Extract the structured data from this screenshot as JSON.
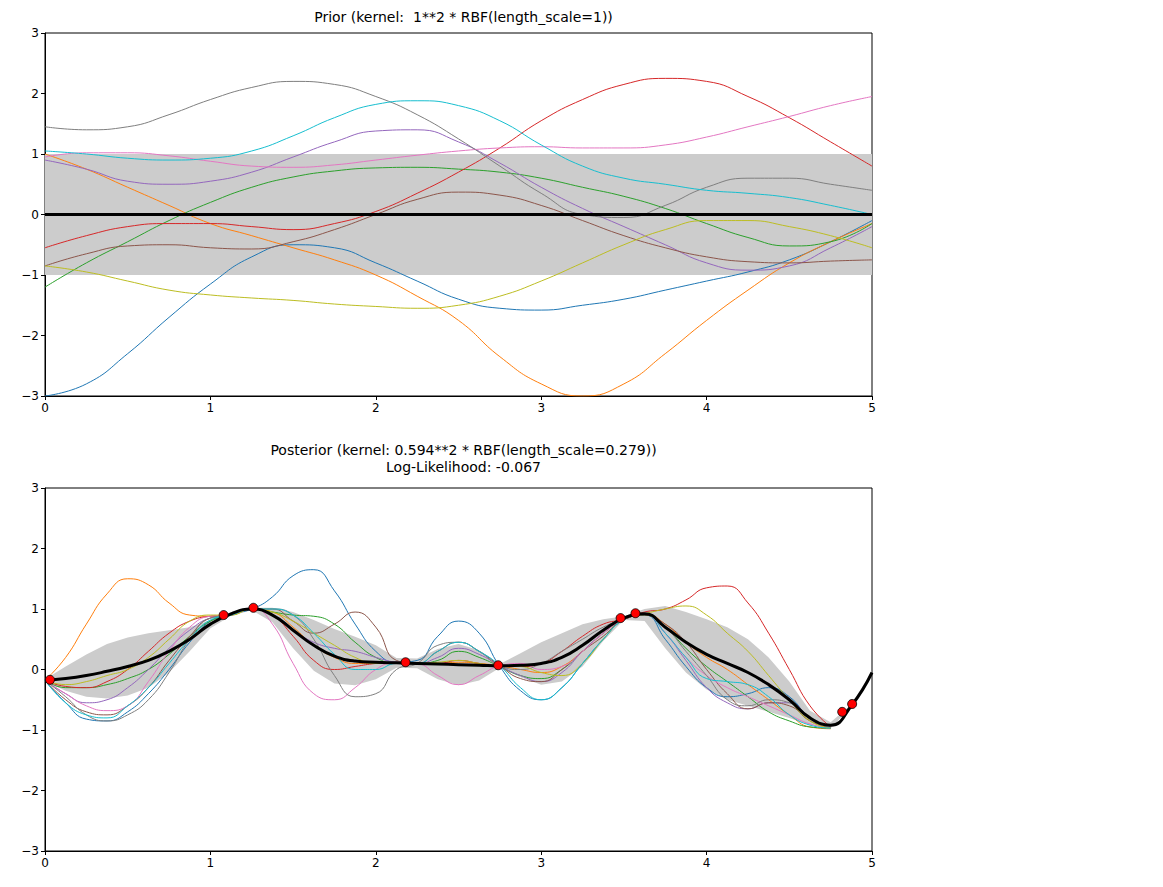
{
  "chart_data": [
    {
      "type": "line",
      "title": "Prior (kernel:  1**2 * RBF(length_scale=1))",
      "x": [
        0,
        0.25,
        0.5,
        0.75,
        1,
        1.25,
        1.5,
        1.75,
        2,
        2.25,
        2.5,
        2.75,
        3,
        3.25,
        3.5,
        3.75,
        4,
        4.25,
        4.5,
        4.75,
        5
      ],
      "series": [
        {
          "color": "#1f77b4",
          "values": [
            -3.0,
            -2.8,
            -2.3,
            -1.7,
            -1.15,
            -0.7,
            -0.5,
            -0.55,
            -0.8,
            -1.1,
            -1.4,
            -1.55,
            -1.58,
            -1.5,
            -1.4,
            -1.25,
            -1.1,
            -0.95,
            -0.75,
            -0.45,
            -0.1
          ]
        },
        {
          "color": "#ff7f0e",
          "values": [
            1.0,
            0.75,
            0.45,
            0.15,
            -0.15,
            -0.35,
            -0.55,
            -0.75,
            -1.0,
            -1.35,
            -1.75,
            -2.35,
            -2.8,
            -3.0,
            -2.8,
            -2.3,
            -1.75,
            -1.25,
            -0.8,
            -0.45,
            -0.15
          ]
        },
        {
          "color": "#2ca02c",
          "values": [
            -1.2,
            -0.8,
            -0.45,
            -0.1,
            0.2,
            0.45,
            0.62,
            0.72,
            0.77,
            0.78,
            0.75,
            0.7,
            0.6,
            0.45,
            0.3,
            0.1,
            -0.15,
            -0.38,
            -0.52,
            -0.45,
            -0.15
          ]
        },
        {
          "color": "#d62728",
          "values": [
            -0.55,
            -0.35,
            -0.2,
            -0.15,
            -0.15,
            -0.2,
            -0.25,
            -0.15,
            0.05,
            0.35,
            0.7,
            1.1,
            1.55,
            1.9,
            2.15,
            2.25,
            2.2,
            1.95,
            1.6,
            1.2,
            0.8
          ]
        },
        {
          "color": "#9467bd",
          "values": [
            0.9,
            0.75,
            0.55,
            0.5,
            0.55,
            0.7,
            0.95,
            1.2,
            1.38,
            1.4,
            1.2,
            0.85,
            0.45,
            0.1,
            -0.2,
            -0.5,
            -0.8,
            -0.92,
            -0.85,
            -0.55,
            -0.2
          ]
        },
        {
          "color": "#8c564b",
          "values": [
            -0.85,
            -0.65,
            -0.52,
            -0.5,
            -0.55,
            -0.57,
            -0.45,
            -0.25,
            0.0,
            0.25,
            0.37,
            0.32,
            0.15,
            -0.1,
            -0.35,
            -0.55,
            -0.7,
            -0.78,
            -0.8,
            -0.77,
            -0.75
          ]
        },
        {
          "color": "#e377c2",
          "values": [
            0.95,
            1.02,
            1.02,
            0.97,
            0.88,
            0.8,
            0.78,
            0.82,
            0.9,
            0.98,
            1.05,
            1.1,
            1.12,
            1.1,
            1.1,
            1.15,
            1.28,
            1.45,
            1.62,
            1.8,
            1.95
          ]
        },
        {
          "color": "#7f7f7f",
          "values": [
            1.45,
            1.4,
            1.45,
            1.65,
            1.9,
            2.1,
            2.2,
            2.15,
            1.95,
            1.65,
            1.25,
            0.8,
            0.35,
            0.0,
            -0.05,
            0.15,
            0.45,
            0.6,
            0.6,
            0.5,
            0.4
          ]
        },
        {
          "color": "#bcbd22",
          "values": [
            -0.85,
            -0.95,
            -1.1,
            -1.25,
            -1.33,
            -1.38,
            -1.42,
            -1.48,
            -1.52,
            -1.55,
            -1.5,
            -1.35,
            -1.1,
            -0.8,
            -0.5,
            -0.25,
            -0.1,
            -0.1,
            -0.2,
            -0.35,
            -0.55
          ]
        },
        {
          "color": "#17becf",
          "values": [
            1.05,
            1.0,
            0.93,
            0.9,
            0.93,
            1.05,
            1.3,
            1.6,
            1.82,
            1.88,
            1.8,
            1.55,
            1.15,
            0.8,
            0.6,
            0.5,
            0.4,
            0.35,
            0.28,
            0.15,
            0.0
          ]
        }
      ],
      "mean": {
        "color": "#000000",
        "values": [
          0,
          0,
          0,
          0,
          0,
          0,
          0,
          0,
          0,
          0,
          0,
          0,
          0,
          0,
          0,
          0,
          0,
          0,
          0,
          0,
          0
        ]
      },
      "band": {
        "color": "#cccccc",
        "lower": [
          -1,
          -1,
          -1,
          -1,
          -1,
          -1,
          -1,
          -1,
          -1,
          -1,
          -1,
          -1,
          -1,
          -1,
          -1,
          -1,
          -1,
          -1,
          -1,
          -1,
          -1
        ],
        "upper": [
          1,
          1,
          1,
          1,
          1,
          1,
          1,
          1,
          1,
          1,
          1,
          1,
          1,
          1,
          1,
          1,
          1,
          1,
          1,
          1,
          1
        ]
      },
      "xlim": [
        0,
        5
      ],
      "ylim": [
        -3,
        3
      ],
      "xticks": [
        0,
        1,
        2,
        3,
        4,
        5
      ],
      "yticks": [
        -3,
        -2,
        -1,
        0,
        1,
        2,
        3
      ],
      "grid": false
    },
    {
      "type": "line",
      "title": "Posterior (kernel: 0.594**2 * RBF(length_scale=0.279))",
      "subtitle": "Log-Likelihood: -0.067",
      "x": [
        0,
        0.125,
        0.25,
        0.375,
        0.5,
        0.625,
        0.75,
        0.875,
        1,
        1.125,
        1.25,
        1.375,
        1.5,
        1.625,
        1.75,
        1.875,
        2,
        2.125,
        2.25,
        2.375,
        2.5,
        2.625,
        2.75,
        2.875,
        3,
        3.125,
        3.25,
        3.375,
        3.5,
        3.625,
        3.75,
        3.875,
        4,
        4.125,
        4.25,
        4.375,
        4.5,
        4.625,
        4.75,
        4.875,
        5
      ],
      "series": [
        {
          "color": "#1f77b4",
          "values": [
            -0.18,
            -0.55,
            -0.82,
            -0.85,
            -0.7,
            -0.4,
            0.0,
            0.45,
            0.8,
            0.92,
            1.0,
            1.2,
            1.55,
            1.65,
            1.3,
            0.75,
            0.3,
            0.12,
            0.15,
            0.55,
            0.8,
            0.6,
            0.05,
            -0.35,
            -0.5,
            -0.3,
            0.1,
            0.5,
            0.82,
            0.9,
            0.5,
            0.05,
            -0.3,
            -0.45,
            -0.4,
            -0.3,
            -0.45,
            -0.8,
            -0.95,
            null,
            null
          ]
        },
        {
          "color": "#ff7f0e",
          "values": [
            -0.18,
            0.2,
            0.75,
            1.25,
            1.5,
            1.4,
            1.1,
            0.9,
            0.88,
            0.9,
            1.0,
            0.95,
            0.7,
            0.4,
            0.2,
            0.1,
            0.1,
            0.1,
            0.1,
            0.1,
            0.12,
            0.1,
            0.06,
            0.0,
            -0.05,
            0.05,
            0.3,
            0.6,
            0.83,
            0.92,
            0.75,
            0.45,
            0.2,
            0.0,
            -0.25,
            -0.5,
            -0.75,
            -0.95,
            -0.98,
            null,
            null
          ]
        },
        {
          "color": "#2ca02c",
          "values": [
            -0.18,
            -0.3,
            -0.3,
            -0.25,
            -0.15,
            0.0,
            0.25,
            0.55,
            0.8,
            0.9,
            1.0,
            0.95,
            0.9,
            0.88,
            0.75,
            0.45,
            0.2,
            0.1,
            0.1,
            0.15,
            0.3,
            0.2,
            0.05,
            -0.1,
            -0.15,
            0.0,
            0.3,
            0.6,
            0.83,
            0.9,
            0.7,
            0.35,
            0.05,
            -0.2,
            -0.45,
            -0.7,
            -0.85,
            -0.95,
            -0.97,
            null,
            null
          ]
        },
        {
          "color": "#d62728",
          "values": [
            -0.18,
            -0.28,
            -0.3,
            -0.2,
            0.0,
            0.3,
            0.6,
            0.8,
            0.88,
            0.9,
            1.0,
            0.9,
            0.55,
            0.15,
            0.0,
            0.05,
            0.1,
            0.12,
            0.1,
            0.1,
            0.15,
            0.1,
            0.06,
            0.05,
            0.1,
            0.3,
            0.55,
            0.75,
            0.83,
            0.95,
            1.0,
            1.15,
            1.35,
            1.38,
            1.1,
            0.6,
            0.0,
            -0.6,
            -0.95,
            null,
            null
          ]
        },
        {
          "color": "#9467bd",
          "values": [
            -0.18,
            -0.4,
            -0.55,
            -0.5,
            -0.3,
            0.0,
            0.35,
            0.65,
            0.85,
            0.9,
            1.0,
            0.9,
            0.65,
            0.45,
            0.35,
            0.3,
            0.2,
            0.12,
            0.1,
            0.2,
            0.35,
            0.25,
            0.06,
            -0.1,
            -0.2,
            -0.05,
            0.3,
            0.6,
            0.83,
            0.92,
            0.6,
            0.15,
            -0.3,
            -0.55,
            -0.65,
            -0.55,
            -0.55,
            -0.8,
            -0.97,
            null,
            null
          ]
        },
        {
          "color": "#8c564b",
          "values": [
            -0.18,
            -0.5,
            -0.7,
            -0.75,
            -0.6,
            -0.3,
            0.15,
            0.55,
            0.85,
            0.9,
            1.0,
            1.0,
            0.8,
            0.6,
            0.75,
            0.95,
            0.7,
            0.15,
            0.1,
            0.3,
            0.45,
            0.3,
            0.06,
            -0.15,
            -0.2,
            0.0,
            0.3,
            0.55,
            0.83,
            0.9,
            0.75,
            0.45,
            0.0,
            -0.4,
            -0.65,
            -0.55,
            -0.6,
            -0.85,
            -0.97,
            null,
            null
          ]
        },
        {
          "color": "#e377c2",
          "values": [
            -0.18,
            -0.4,
            -0.6,
            -0.68,
            -0.6,
            -0.2,
            0.3,
            0.7,
            0.88,
            0.9,
            1.02,
            0.75,
            0.1,
            -0.4,
            -0.5,
            -0.3,
            0.0,
            0.12,
            0.1,
            -0.1,
            -0.25,
            -0.1,
            0.06,
            0.1,
            0.0,
            0.05,
            0.3,
            0.6,
            0.83,
            0.92,
            0.6,
            0.2,
            -0.1,
            -0.3,
            -0.45,
            -0.6,
            -0.75,
            -0.9,
            -0.97,
            null,
            null
          ]
        },
        {
          "color": "#7f7f7f",
          "values": [
            -0.18,
            -0.45,
            -0.75,
            -0.85,
            -0.75,
            -0.5,
            -0.05,
            0.5,
            0.85,
            0.9,
            1.0,
            1.0,
            0.9,
            0.5,
            -0.1,
            -0.45,
            -0.4,
            0.0,
            0.1,
            0.4,
            0.45,
            0.3,
            0.06,
            0.0,
            0.1,
            0.3,
            0.5,
            0.7,
            0.83,
            0.92,
            0.7,
            0.3,
            -0.1,
            -0.5,
            -0.6,
            -0.5,
            -0.55,
            -0.8,
            -0.97,
            null,
            null
          ]
        },
        {
          "color": "#bcbd22",
          "values": [
            -0.18,
            -0.25,
            -0.2,
            -0.1,
            0.0,
            0.2,
            0.5,
            0.8,
            0.9,
            0.9,
            1.0,
            0.95,
            0.8,
            0.6,
            0.4,
            0.2,
            0.1,
            0.1,
            0.1,
            0.12,
            0.15,
            0.1,
            0.06,
            0.05,
            -0.05,
            -0.1,
            0.1,
            0.5,
            0.83,
            0.92,
            1.0,
            1.05,
            0.9,
            0.6,
            0.3,
            -0.1,
            -0.5,
            -0.85,
            -0.97,
            null,
            null
          ]
        },
        {
          "color": "#17becf",
          "values": [
            -0.18,
            -0.55,
            -0.75,
            -0.8,
            -0.6,
            -0.3,
            0.1,
            0.5,
            0.82,
            0.9,
            1.0,
            1.0,
            0.9,
            0.6,
            0.25,
            0.0,
            0.0,
            0.1,
            0.1,
            0.3,
            0.45,
            0.3,
            0.06,
            -0.3,
            -0.5,
            -0.3,
            0.1,
            0.5,
            0.83,
            0.92,
            0.6,
            0.2,
            -0.15,
            -0.2,
            -0.25,
            -0.45,
            -0.75,
            -0.92,
            -0.97,
            null,
            null
          ]
        }
      ],
      "mean": {
        "color": "#000000",
        "values": [
          -0.18,
          -0.15,
          -0.1,
          -0.03,
          0.05,
          0.15,
          0.3,
          0.5,
          0.75,
          0.92,
          1.0,
          0.9,
          0.65,
          0.4,
          0.22,
          0.14,
          0.12,
          0.11,
          0.1,
          0.09,
          0.08,
          0.07,
          0.06,
          0.07,
          0.1,
          0.2,
          0.4,
          0.65,
          0.85,
          0.92,
          0.7,
          0.45,
          0.25,
          0.1,
          -0.05,
          -0.25,
          -0.5,
          -0.8,
          -0.92,
          -0.6,
          -0.05
        ]
      },
      "band": {
        "color": "#cccccc",
        "lower": [
          -0.2,
          -0.35,
          -0.45,
          -0.48,
          -0.43,
          -0.3,
          -0.05,
          0.3,
          0.68,
          0.89,
          0.98,
          0.78,
          0.35,
          -0.02,
          -0.23,
          -0.26,
          -0.16,
          0.03,
          0.02,
          -0.16,
          -0.26,
          -0.18,
          0.03,
          -0.13,
          -0.25,
          -0.2,
          0.05,
          0.47,
          0.82,
          0.8,
          0.35,
          -0.05,
          -0.33,
          -0.5,
          -0.6,
          -0.7,
          -0.8,
          -0.92,
          -0.97,
          -0.62,
          -0.07
        ],
        "upper": [
          -0.16,
          0.05,
          0.25,
          0.42,
          0.53,
          0.6,
          0.65,
          0.7,
          0.82,
          0.95,
          1.02,
          1.02,
          0.95,
          0.82,
          0.67,
          0.54,
          0.4,
          0.19,
          0.18,
          0.34,
          0.42,
          0.32,
          0.09,
          0.27,
          0.45,
          0.6,
          0.75,
          0.83,
          0.88,
          1.0,
          1.05,
          0.95,
          0.83,
          0.7,
          0.5,
          0.2,
          -0.2,
          -0.68,
          -0.87,
          -0.58,
          -0.03
        ]
      },
      "points": {
        "type": "scatter",
        "color": "#ff0000",
        "marker": "circle",
        "x": [
          0.03,
          1.08,
          1.26,
          2.18,
          2.74,
          3.48,
          3.57,
          4.82,
          4.88
        ],
        "y": [
          -0.17,
          0.9,
          1.02,
          0.12,
          0.07,
          0.85,
          0.93,
          -0.7,
          -0.57
        ]
      },
      "xlim": [
        0,
        5
      ],
      "ylim": [
        -3,
        3
      ],
      "xticks": [
        0,
        1,
        2,
        3,
        4,
        5
      ],
      "yticks": [
        -3,
        -2,
        -1,
        0,
        1,
        2,
        3
      ],
      "grid": false
    }
  ]
}
